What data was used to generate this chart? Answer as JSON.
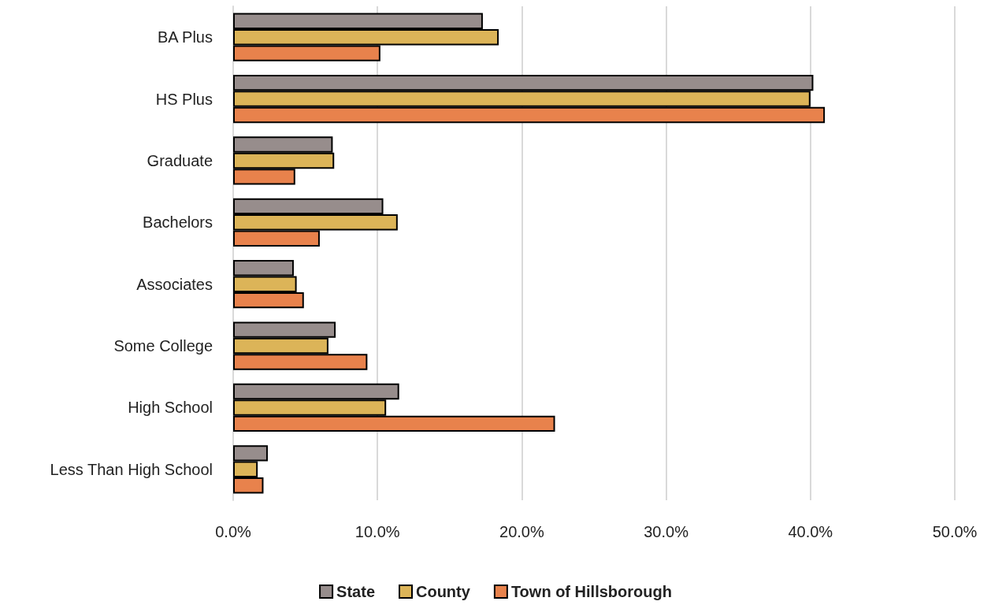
{
  "chart_data": {
    "type": "bar",
    "orientation": "horizontal",
    "categories": [
      "BA Plus",
      "HS Plus",
      "Graduate",
      "Bachelors",
      "Associates",
      "Some College",
      "High School",
      "Less Than High School"
    ],
    "series": [
      {
        "name": "State",
        "color": "#978d8c",
        "values": [
          17.3,
          40.2,
          6.9,
          10.4,
          4.2,
          7.1,
          11.5,
          2.4
        ]
      },
      {
        "name": "County",
        "color": "#dcb458",
        "values": [
          18.4,
          40.0,
          7.0,
          11.4,
          4.4,
          6.6,
          10.6,
          1.7
        ]
      },
      {
        "name": "Town of Hillsborough",
        "color": "#e8824c",
        "values": [
          10.2,
          41.0,
          4.3,
          6.0,
          4.9,
          9.3,
          22.3,
          2.1
        ]
      }
    ],
    "xlim": [
      0,
      50
    ],
    "xticks": [
      {
        "value": 0,
        "label": "0.0%"
      },
      {
        "value": 10,
        "label": "10.0%"
      },
      {
        "value": 20,
        "label": "20.0%"
      },
      {
        "value": 30,
        "label": "30.0%"
      },
      {
        "value": 40,
        "label": "40.0%"
      },
      {
        "value": 50,
        "label": "50.0%"
      }
    ],
    "grid": "x",
    "legend": "bottom"
  }
}
